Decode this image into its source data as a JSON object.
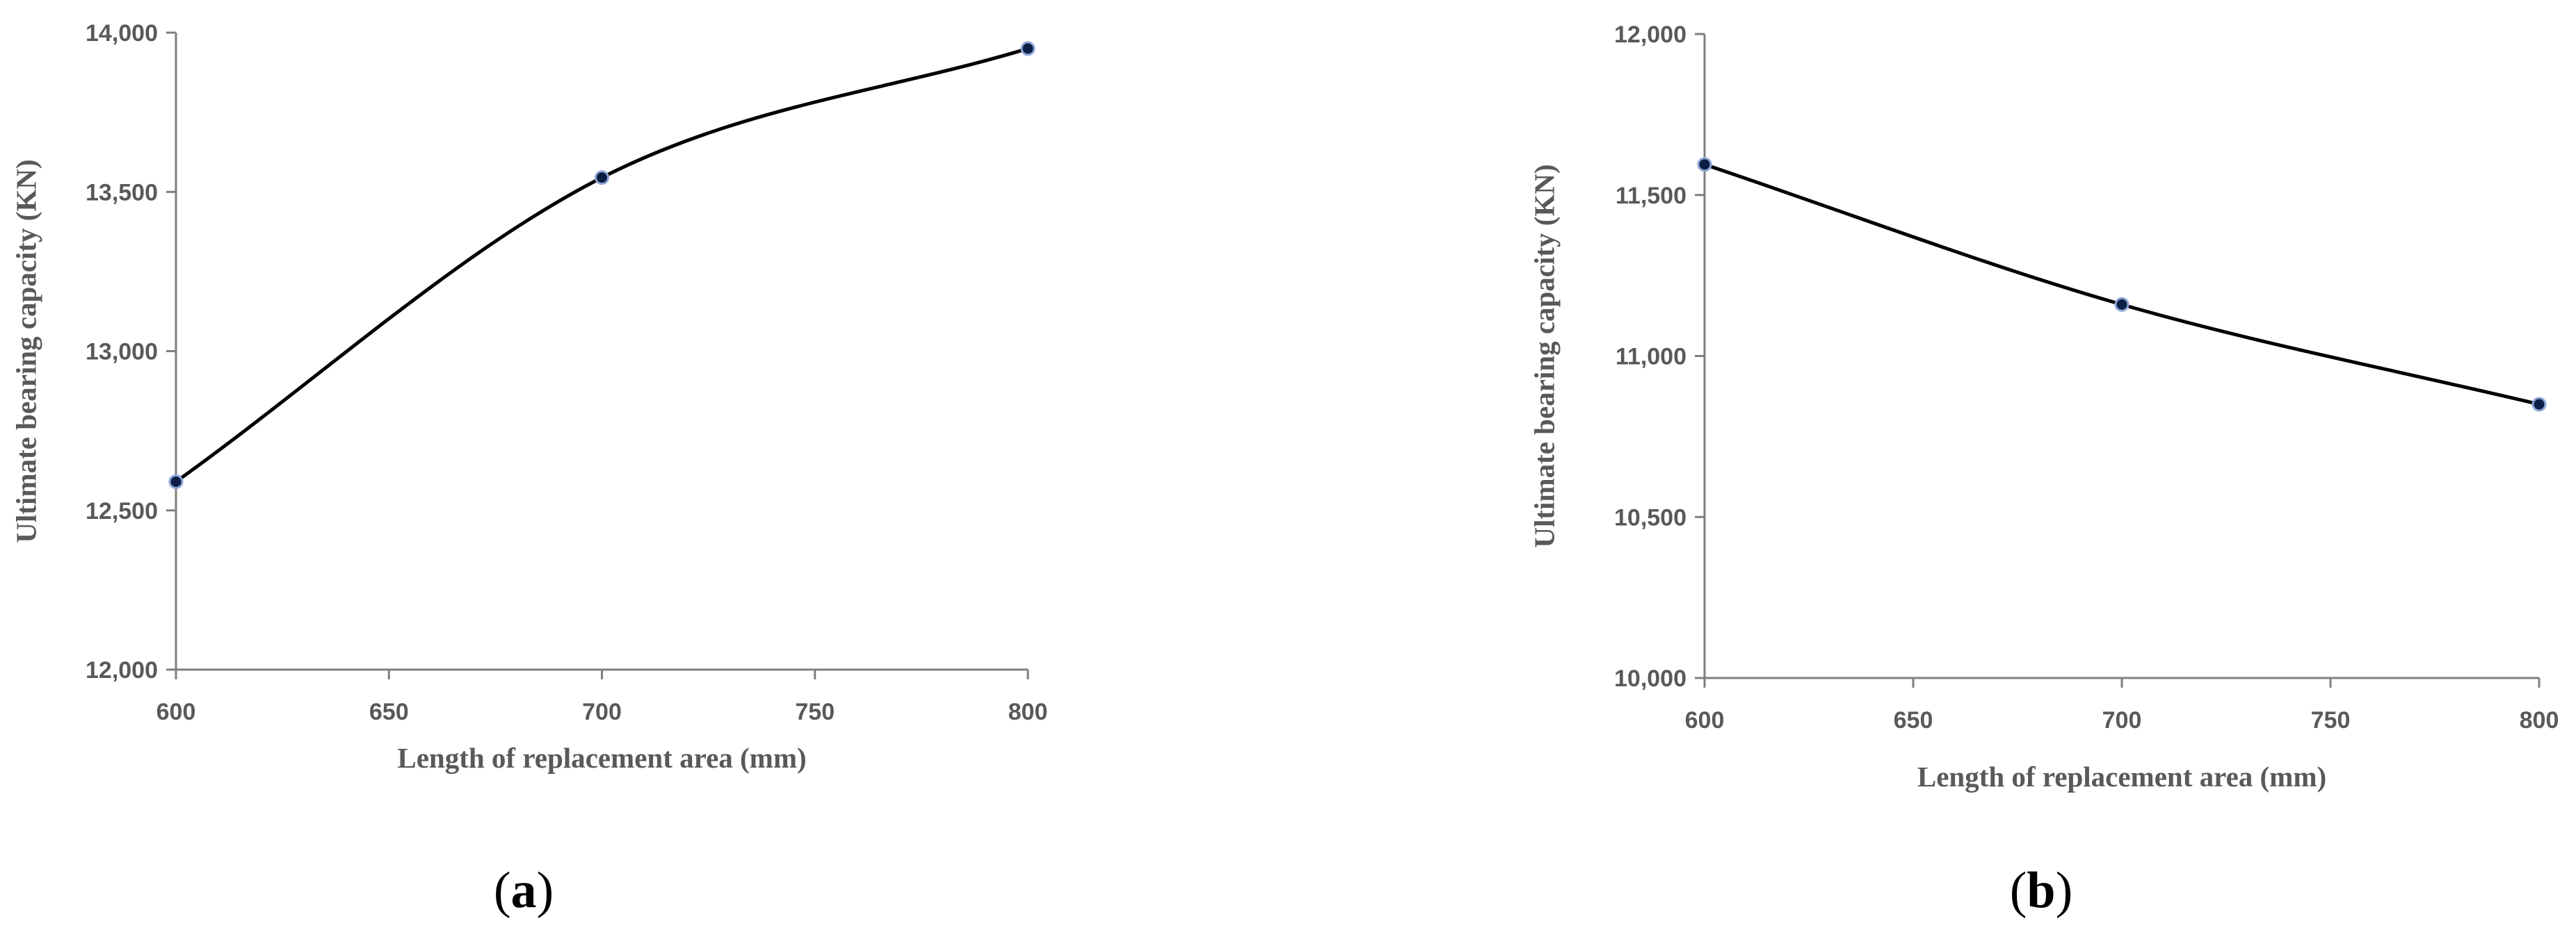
{
  "chart_data": [
    {
      "panel": "(a)",
      "caption_open": "(",
      "caption_letter": "a",
      "caption_close": ")",
      "type": "line",
      "smooth": true,
      "xlabel": "Length of replacement area (mm)",
      "ylabel": "Ultimate bearing capacity (KN)",
      "xlim": [
        600,
        800
      ],
      "ylim": [
        12000,
        14000
      ],
      "xticks": [
        600,
        650,
        700,
        750,
        800
      ],
      "xtick_labels": [
        "600",
        "650",
        "700",
        "750",
        "800"
      ],
      "yticks": [
        12000,
        12500,
        13000,
        13500,
        14000
      ],
      "ytick_labels": [
        "12,000",
        "12,500",
        "13,000",
        "13,500",
        "14,000"
      ],
      "x": [
        600,
        700,
        800
      ],
      "y": [
        12590,
        13545,
        13950
      ],
      "grid": false,
      "line_color": "#000000",
      "marker_color": "#0b1f45"
    },
    {
      "panel": "(b)",
      "caption_open": "(",
      "caption_letter": "b",
      "caption_close": ")",
      "type": "line",
      "smooth": true,
      "xlabel": "Length of replacement area (mm)",
      "ylabel": "Ultimate bearing capacity (KN)",
      "xlim": [
        600,
        800
      ],
      "ylim": [
        10000,
        12000
      ],
      "xticks": [
        600,
        650,
        700,
        750,
        800
      ],
      "xtick_labels": [
        "600",
        "650",
        "700",
        "750",
        "800"
      ],
      "yticks": [
        10000,
        10500,
        11000,
        11500,
        12000
      ],
      "ytick_labels": [
        "10,000",
        "10,500",
        "11,000",
        "11,500",
        "12,000"
      ],
      "x": [
        600,
        700,
        800
      ],
      "y": [
        11595,
        11160,
        10850
      ],
      "grid": false,
      "line_color": "#000000",
      "marker_color": "#0b1f45"
    }
  ]
}
